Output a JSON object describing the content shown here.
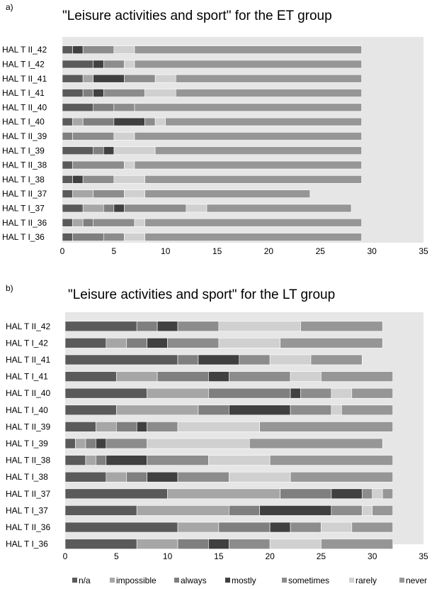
{
  "legend": {
    "items": [
      {
        "name": "n/a",
        "color": "#5a5a5a"
      },
      {
        "name": "impossible",
        "color": "#a6a6a6"
      },
      {
        "name": "always",
        "color": "#7f7f7f"
      },
      {
        "name": "mostly",
        "color": "#404040"
      },
      {
        "name": "sometimes",
        "color": "#8c8c8c"
      },
      {
        "name": "rarely",
        "color": "#d0d0d0"
      },
      {
        "name": "never",
        "color": "#969696"
      }
    ]
  },
  "chart_data": [
    {
      "type": "bar",
      "orientation": "horizontal",
      "stacked": true,
      "panel_label": "a)",
      "title": "\"Leisure activities and sport\" for the ET group",
      "categories": [
        "HAL T II_42",
        "HAL T I_42",
        "HAL T II_41",
        "HAL T I_41",
        "HAL T II_40",
        "HAL T I_40",
        "HAL T II_39",
        "HAL T I_39",
        "HAL T II_38",
        "HAL T I_38",
        "HAL T II_37",
        "HAL T I_37",
        "HAL T II_36",
        "HAL T I_36"
      ],
      "xlim": [
        0,
        35
      ],
      "xticks": [
        0,
        5,
        10,
        15,
        20,
        25,
        30,
        35
      ],
      "grid": false,
      "series": [
        {
          "name": "n/a",
          "values": [
            1,
            3,
            2,
            2,
            3,
            1,
            0,
            3,
            1,
            1,
            1,
            2,
            1,
            1
          ]
        },
        {
          "name": "impossible",
          "values": [
            0,
            0,
            1,
            0,
            0,
            1,
            0,
            0,
            0,
            0,
            2,
            2,
            1,
            0
          ]
        },
        {
          "name": "always",
          "values": [
            0,
            0,
            0,
            1,
            2,
            3,
            1,
            1,
            0,
            0,
            0,
            1,
            1,
            3
          ]
        },
        {
          "name": "mostly",
          "values": [
            1,
            1,
            3,
            1,
            0,
            3,
            0,
            1,
            0,
            1,
            0,
            1,
            0,
            0
          ]
        },
        {
          "name": "sometimes",
          "values": [
            3,
            2,
            3,
            4,
            2,
            1,
            4,
            0,
            5,
            3,
            3,
            6,
            4,
            2
          ]
        },
        {
          "name": "rarely",
          "values": [
            2,
            1,
            2,
            3,
            0,
            1,
            2,
            4,
            1,
            3,
            2,
            2,
            1,
            2
          ]
        },
        {
          "name": "never",
          "values": [
            22,
            22,
            18,
            18,
            22,
            19,
            22,
            20,
            22,
            21,
            16,
            14,
            21,
            21
          ]
        }
      ]
    },
    {
      "type": "bar",
      "orientation": "horizontal",
      "stacked": true,
      "panel_label": "b)",
      "title": "\"Leisure activities and sport\" for the LT group",
      "categories": [
        "HAL T II_42",
        "HAL T I_42",
        "HAL T II_41",
        "HAL T I_41",
        "HAL T II_40",
        "HAL T I_40",
        "HAL T II_39",
        "HAL T I_39",
        "HAL T II_38",
        "HAL T I_38",
        "HAL T II_37",
        "HAL T I_37",
        "HAL T II_36",
        "HAL T I_36"
      ],
      "xlim": [
        0,
        35
      ],
      "xticks": [
        0,
        5,
        10,
        15,
        20,
        25,
        30,
        35
      ],
      "grid": false,
      "series": [
        {
          "name": "n/a",
          "values": [
            7,
            4,
            11,
            5,
            8,
            5,
            3,
            1,
            2,
            4,
            10,
            7,
            11,
            7
          ]
        },
        {
          "name": "impossible",
          "values": [
            0,
            2,
            0,
            4,
            6,
            8,
            2,
            1,
            1,
            2,
            11,
            9,
            4,
            4
          ]
        },
        {
          "name": "always",
          "values": [
            2,
            2,
            2,
            5,
            8,
            3,
            2,
            1,
            1,
            2,
            5,
            3,
            5,
            3
          ]
        },
        {
          "name": "mostly",
          "values": [
            2,
            2,
            4,
            2,
            1,
            6,
            1,
            1,
            4,
            3,
            3,
            7,
            2,
            2
          ]
        },
        {
          "name": "sometimes",
          "values": [
            4,
            5,
            3,
            6,
            3,
            4,
            3,
            4,
            6,
            5,
            1,
            3,
            3,
            4
          ]
        },
        {
          "name": "rarely",
          "values": [
            8,
            6,
            4,
            3,
            2,
            1,
            8,
            10,
            6,
            6,
            1,
            1,
            3,
            5
          ]
        },
        {
          "name": "never",
          "values": [
            8,
            10,
            5,
            7,
            4,
            5,
            13,
            13,
            12,
            10,
            1,
            2,
            4,
            7
          ]
        }
      ]
    }
  ]
}
